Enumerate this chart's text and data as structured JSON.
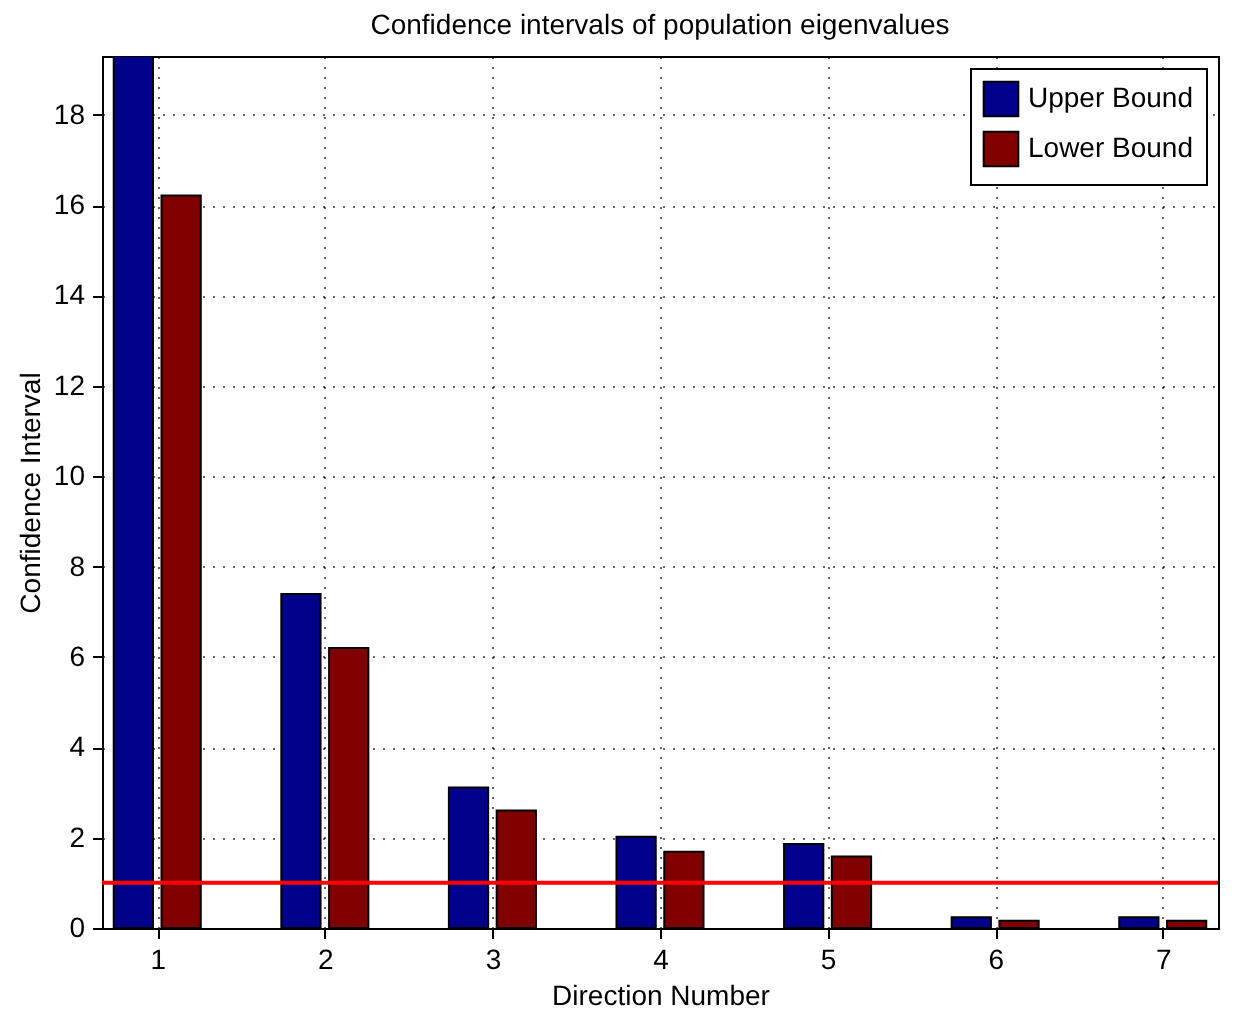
{
  "chart_data": {
    "type": "bar",
    "title": "Confidence intervals of population eigenvalues",
    "xlabel": "Direction Number",
    "ylabel": "Confidence Interval",
    "x": [
      1,
      2,
      3,
      4,
      5,
      6,
      7
    ],
    "series": [
      {
        "name": "Upper Bound",
        "color": "#00008b",
        "values": [
          19.3,
          7.39,
          3.11,
          2.02,
          1.86,
          0.24,
          0.24
        ]
      },
      {
        "name": "Lower Bound",
        "color": "#800000",
        "values": [
          16.21,
          6.2,
          2.6,
          1.69,
          1.58,
          0.16,
          0.16
        ]
      }
    ],
    "xlim": [
      0.73,
      7.27
    ],
    "xticks": [
      1,
      2,
      3,
      4,
      5,
      6,
      7
    ],
    "ylim": [
      0,
      19.3
    ],
    "yticks": [
      0,
      2,
      4,
      6,
      8,
      10,
      12,
      14,
      16,
      18
    ],
    "ref_lines": [
      {
        "axis": "y",
        "value": 1,
        "color": "#ff0000"
      }
    ],
    "grid": true,
    "legend": "top right"
  }
}
